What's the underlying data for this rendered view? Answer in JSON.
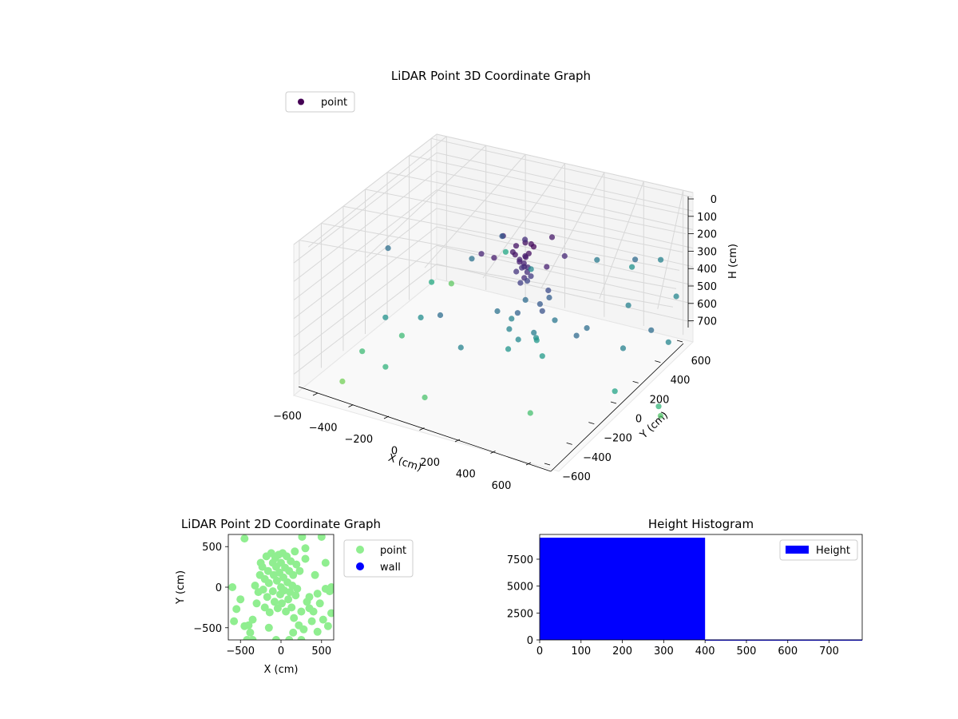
{
  "chart_data": [
    {
      "type": "scatter",
      "projection": "3d",
      "title": "LiDAR Point 3D Coordinate Graph",
      "xlabel": "X (cm)",
      "ylabel": "Y (cm)",
      "zlabel": "H (cm)",
      "xticks": [
        "−600",
        "−400",
        "−200",
        "0",
        "200",
        "400",
        "600"
      ],
      "yticks": [
        "−600",
        "−400",
        "−200",
        "0",
        "200",
        "400",
        "600"
      ],
      "zticks": [
        "0",
        "100",
        "200",
        "300",
        "400",
        "500",
        "600",
        "700"
      ],
      "zaxis_inverted": true,
      "legend": {
        "entries": [
          "point"
        ],
        "placement": "upper-left",
        "marker_color": "#440154"
      },
      "grid": true,
      "colormap": "viridis",
      "series": [
        {
          "name": "point",
          "note": "representative sample of visible points (x, y in cm; h in cm)",
          "points": [
            [
              -60,
              -10,
              150
            ],
            [
              -40,
              20,
              140
            ],
            [
              0,
              40,
              130
            ],
            [
              40,
              30,
              150
            ],
            [
              60,
              -20,
              160
            ],
            [
              20,
              -40,
              170
            ],
            [
              -30,
              -40,
              160
            ],
            [
              10,
              10,
              190
            ],
            [
              -20,
              0,
              200
            ],
            [
              30,
              -10,
              210
            ],
            [
              -10,
              -20,
              220
            ],
            [
              0,
              0,
              230
            ],
            [
              15,
              5,
              240
            ],
            [
              -5,
              15,
              250
            ],
            [
              25,
              20,
              260
            ],
            [
              -25,
              -15,
              270
            ],
            [
              5,
              -30,
              280
            ],
            [
              -15,
              25,
              300
            ],
            [
              35,
              -5,
              320
            ],
            [
              -35,
              5,
              340
            ],
            [
              -150,
              80,
              140
            ],
            [
              150,
              -80,
              150
            ],
            [
              120,
              120,
              160
            ],
            [
              -120,
              -120,
              170
            ],
            [
              80,
              -150,
              180
            ],
            [
              -80,
              150,
              190
            ],
            [
              200,
              50,
              200
            ],
            [
              -200,
              -50,
              210
            ],
            [
              0,
              100,
              350
            ],
            [
              60,
              80,
              400
            ],
            [
              -60,
              90,
              420
            ],
            [
              100,
              0,
              450
            ],
            [
              -100,
              -20,
              480
            ],
            [
              30,
              -100,
              500
            ],
            [
              -30,
              120,
              520
            ],
            [
              80,
              60,
              550
            ],
            [
              -70,
              -70,
              580
            ],
            [
              0,
              -60,
              600
            ],
            [
              50,
              -10,
              620
            ],
            [
              -40,
              40,
              640
            ],
            [
              90,
              -40,
              660
            ],
            [
              -90,
              30,
              680
            ],
            [
              20,
              80,
              700
            ],
            [
              -600,
              350,
              450
            ],
            [
              -500,
              200,
              400
            ],
            [
              -450,
              -100,
              500
            ],
            [
              -550,
              500,
              350
            ],
            [
              -400,
              400,
              300
            ],
            [
              -300,
              -500,
              600
            ],
            [
              -650,
              -300,
              550
            ],
            [
              300,
              -450,
              500
            ],
            [
              450,
              -200,
              350
            ],
            [
              500,
              300,
              300
            ],
            [
              400,
              -500,
              650
            ],
            [
              550,
              -100,
              450
            ],
            [
              350,
              450,
              400
            ],
            [
              600,
              -350,
              600
            ],
            [
              -250,
              -300,
              400
            ],
            [
              250,
              300,
              380
            ],
            [
              -200,
              400,
              450
            ],
            [
              200,
              -350,
              520
            ],
            [
              -350,
              -200,
              300
            ],
            [
              350,
              150,
              280
            ],
            [
              600,
              600,
              550
            ],
            [
              500,
              600,
              650
            ],
            [
              620,
              450,
              500
            ],
            [
              650,
              -200,
              700
            ],
            [
              600,
              -500,
              720
            ],
            [
              580,
              150,
              720
            ],
            [
              -300,
              600,
              400
            ],
            [
              100,
              600,
              450
            ],
            [
              300,
              550,
              300
            ],
            [
              -100,
              -600,
              350
            ],
            [
              -500,
              -500,
              700
            ],
            [
              0,
              -500,
              750
            ]
          ]
        }
      ]
    },
    {
      "type": "scatter",
      "title": "LiDAR Point 2D Coordinate Graph",
      "xlabel": "X (cm)",
      "ylabel": "Y (cm)",
      "xlim": [
        -650,
        650
      ],
      "ylim": [
        -650,
        650
      ],
      "xticks": [
        "−500",
        "0",
        "500"
      ],
      "yticks": [
        "−500",
        "0",
        "500"
      ],
      "legend": {
        "placement": "outside-right",
        "entries": [
          "point",
          "wall"
        ]
      },
      "series": [
        {
          "name": "point",
          "color": "#90ee90",
          "points": [
            [
              -600,
              0
            ],
            [
              -550,
              -270
            ],
            [
              -450,
              -480
            ],
            [
              -400,
              -470
            ],
            [
              -420,
              -650
            ],
            [
              -350,
              -650
            ],
            [
              -300,
              -200
            ],
            [
              -320,
              20
            ],
            [
              -280,
              -60
            ],
            [
              -260,
              150
            ],
            [
              -250,
              300
            ],
            [
              -230,
              250
            ],
            [
              -220,
              -30
            ],
            [
              -200,
              100
            ],
            [
              -200,
              -250
            ],
            [
              -180,
              380
            ],
            [
              -170,
              -120
            ],
            [
              -160,
              200
            ],
            [
              -150,
              50
            ],
            [
              -140,
              -310
            ],
            [
              -120,
              420
            ],
            [
              -100,
              300
            ],
            [
              -100,
              -50
            ],
            [
              -90,
              150
            ],
            [
              -80,
              -180
            ],
            [
              -70,
              360
            ],
            [
              -60,
              250
            ],
            [
              -50,
              80
            ],
            [
              -40,
              -260
            ],
            [
              -30,
              400
            ],
            [
              -20,
              180
            ],
            [
              -10,
              -90
            ],
            [
              0,
              300
            ],
            [
              0,
              0
            ],
            [
              10,
              -200
            ],
            [
              20,
              420
            ],
            [
              30,
              120
            ],
            [
              40,
              -40
            ],
            [
              50,
              240
            ],
            [
              60,
              -300
            ],
            [
              70,
              380
            ],
            [
              80,
              60
            ],
            [
              90,
              -150
            ],
            [
              100,
              200
            ],
            [
              110,
              -60
            ],
            [
              120,
              320
            ],
            [
              130,
              -250
            ],
            [
              140,
              20
            ],
            [
              150,
              150
            ],
            [
              160,
              -380
            ],
            [
              170,
              440
            ],
            [
              180,
              -100
            ],
            [
              190,
              280
            ],
            [
              200,
              -20
            ],
            [
              220,
              -470
            ],
            [
              230,
              200
            ],
            [
              250,
              -300
            ],
            [
              260,
              620
            ],
            [
              280,
              -520
            ],
            [
              300,
              350
            ],
            [
              320,
              -180
            ],
            [
              350,
              -260
            ],
            [
              380,
              -420
            ],
            [
              400,
              -300
            ],
            [
              420,
              150
            ],
            [
              450,
              -550
            ],
            [
              480,
              -200
            ],
            [
              500,
              620
            ],
            [
              520,
              -400
            ],
            [
              550,
              300
            ],
            [
              580,
              -480
            ],
            [
              600,
              -50
            ],
            [
              620,
              -320
            ],
            [
              -580,
              -420
            ],
            [
              -500,
              -150
            ],
            [
              -380,
              -560
            ],
            [
              -60,
              -650
            ],
            [
              100,
              -650
            ],
            [
              250,
              -650
            ],
            [
              -450,
              600
            ],
            [
              300,
              480
            ],
            [
              350,
              -120
            ],
            [
              -350,
              -400
            ],
            [
              -150,
              -500
            ],
            [
              150,
              -560
            ],
            [
              450,
              -80
            ],
            [
              550,
              -20
            ],
            [
              620,
              0
            ]
          ]
        },
        {
          "name": "wall",
          "color": "#0000ff",
          "points": []
        }
      ]
    },
    {
      "type": "bar",
      "subtype": "histogram",
      "title": "Height Histogram",
      "xlim": [
        0,
        780
      ],
      "ylim": [
        0,
        9800
      ],
      "xticks": [
        "0",
        "100",
        "200",
        "300",
        "400",
        "500",
        "600",
        "700"
      ],
      "yticks": [
        "0",
        "2500",
        "5000",
        "7500"
      ],
      "legend": {
        "placement": "top-right",
        "entries": [
          "Height"
        ]
      },
      "series": [
        {
          "name": "Height",
          "color": "#0000ff",
          "bins": [
            {
              "from": 0,
              "to": 400,
              "count": 9500
            },
            {
              "from": 400,
              "to": 780,
              "count": 40
            }
          ]
        }
      ]
    }
  ]
}
